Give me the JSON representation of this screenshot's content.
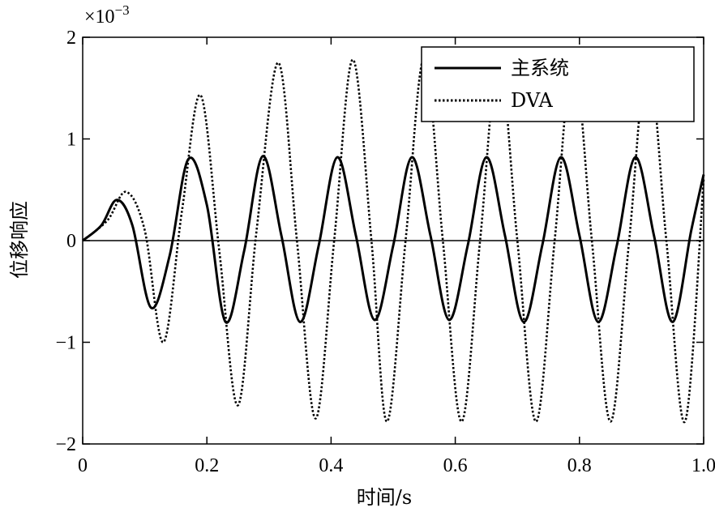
{
  "chart_data": {
    "type": "line",
    "title": "",
    "xlabel": "时间/s",
    "ylabel": "位移响应",
    "y_multiplier": "×10",
    "y_multiplier_exponent": "−3",
    "xlim": [
      0,
      1.0
    ],
    "ylim": [
      -2,
      2
    ],
    "xticks": [
      0,
      0.2,
      0.4,
      0.6,
      0.8,
      1.0
    ],
    "xtick_labels": [
      "0",
      "0.2",
      "0.4",
      "0.6",
      "0.8",
      "1.0"
    ],
    "yticks": [
      -2,
      -1,
      0,
      1,
      2
    ],
    "ytick_labels": [
      "−2",
      "−1",
      "0",
      "1",
      "2"
    ],
    "zero_line": true,
    "grid": false,
    "legend_position": "top-right",
    "series": [
      {
        "name": "主系统",
        "style": "solid",
        "color": "#000000",
        "x": [
          0,
          0.03,
          0.055,
          0.08,
          0.11,
          0.14,
          0.17,
          0.2,
          0.23,
          0.26,
          0.29,
          0.32,
          0.35,
          0.38,
          0.41,
          0.44,
          0.47,
          0.5,
          0.53,
          0.56,
          0.59,
          0.62,
          0.65,
          0.68,
          0.71,
          0.74,
          0.77,
          0.8,
          0.83,
          0.86,
          0.89,
          0.92,
          0.95,
          0.98,
          1.0
        ],
        "values": [
          0,
          0.15,
          0.4,
          0.15,
          -0.66,
          -0.15,
          0.8,
          0.35,
          -0.8,
          -0.1,
          0.83,
          0.05,
          -0.8,
          -0.05,
          0.82,
          0.05,
          -0.78,
          -0.05,
          0.82,
          0.05,
          -0.78,
          -0.05,
          0.82,
          0.05,
          -0.8,
          -0.05,
          0.82,
          0.05,
          -0.8,
          -0.05,
          0.82,
          0.05,
          -0.8,
          0.1,
          0.65
        ]
      },
      {
        "name": "DVA",
        "style": "dotted",
        "color": "#000000",
        "x": [
          0,
          0.04,
          0.07,
          0.1,
          0.13,
          0.16,
          0.19,
          0.22,
          0.25,
          0.28,
          0.315,
          0.345,
          0.375,
          0.405,
          0.435,
          0.465,
          0.49,
          0.52,
          0.55,
          0.58,
          0.61,
          0.64,
          0.67,
          0.7,
          0.73,
          0.76,
          0.79,
          0.82,
          0.85,
          0.88,
          0.91,
          0.94,
          0.97,
          1.0
        ],
        "values": [
          0,
          0.2,
          0.48,
          0.1,
          -1.0,
          0.3,
          1.43,
          -0.1,
          -1.62,
          0.1,
          1.75,
          0.0,
          -1.75,
          0.0,
          1.78,
          0.0,
          -1.78,
          0.0,
          1.8,
          0.0,
          -1.78,
          0.0,
          1.8,
          0.0,
          -1.78,
          0.0,
          1.8,
          0.0,
          -1.78,
          0.0,
          1.8,
          0.0,
          -1.78,
          0.6
        ]
      }
    ]
  }
}
